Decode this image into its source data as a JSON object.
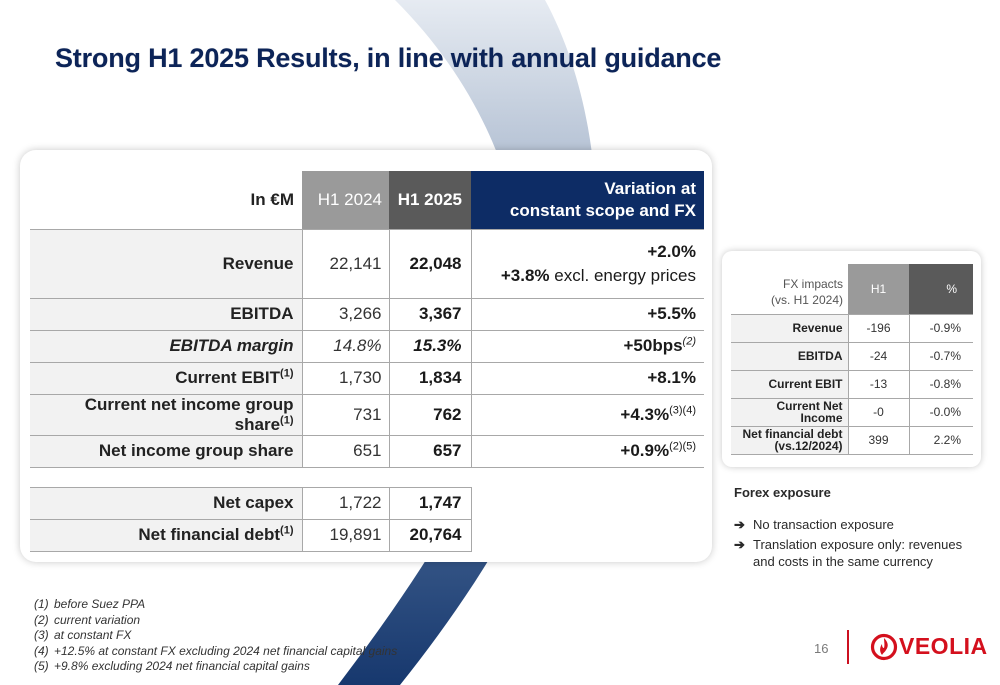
{
  "title": "Strong H1 2025 Results, in line with annual guidance",
  "main_table": {
    "header": {
      "label": "In €M",
      "h1_2024": "H1 2024",
      "h1_2025": "H1 2025",
      "variation_line1": "Variation at",
      "variation_line2": "constant scope and FX"
    },
    "rows": [
      {
        "label": "Revenue",
        "h1_2024": "22,141",
        "h1_2025": "22,048",
        "var": "+2.0%",
        "var2_value": "+3.8%",
        "var2_text": " excl. energy prices"
      },
      {
        "label": "EBITDA",
        "h1_2024": "3,266",
        "h1_2025": "3,367",
        "var": "+5.5%"
      },
      {
        "label": "EBITDA margin",
        "h1_2024": "14.8%",
        "h1_2025": "15.3%",
        "var": "+50bps",
        "var_note": "(2)"
      },
      {
        "label": "Current EBIT",
        "label_note": "(1)",
        "h1_2024": "1,730",
        "h1_2025": "1,834",
        "var": "+8.1%"
      },
      {
        "label": "Current net income group share",
        "label_note": "(1)",
        "h1_2024": "731",
        "h1_2025": "762",
        "var": "+4.3%",
        "var_note": "(3)(4)"
      },
      {
        "label": "Net income group share",
        "h1_2024": "651",
        "h1_2025": "657",
        "var": "+0.9%",
        "var_note": "(2)(5)"
      },
      {
        "label": "Net capex",
        "h1_2024": "1,722",
        "h1_2025": "1,747"
      },
      {
        "label": "Net financial debt",
        "label_note": "(1)",
        "h1_2024": "19,891",
        "h1_2025": "20,764"
      }
    ]
  },
  "fx_table": {
    "header": {
      "line1": "FX impacts",
      "line2": "(vs. H1 2024)",
      "h1": "H1",
      "pct": "%"
    },
    "rows": [
      {
        "label": "Revenue",
        "h1": "-196",
        "pct": "-0.9%"
      },
      {
        "label": "EBITDA",
        "h1": "-24",
        "pct": "-0.7%"
      },
      {
        "label": "Current EBIT",
        "h1": "-13",
        "pct": "-0.8%"
      },
      {
        "label_line1": "Current Net",
        "label_line2": "Income",
        "h1": "-0",
        "pct": "-0.0%"
      },
      {
        "label_line1": "Net financial debt",
        "label_line2": "(vs.12/2024)",
        "h1": "399",
        "pct": "2.2%"
      }
    ]
  },
  "forex": {
    "heading": "Forex exposure",
    "bullets": [
      "No transaction exposure",
      "Translation exposure only: revenues and costs in the same currency"
    ],
    "arrow_glyph": "➔"
  },
  "notes": [
    {
      "num": "(1)",
      "text": "before Suez PPA"
    },
    {
      "num": "(2)",
      "text": "current variation"
    },
    {
      "num": "(3)",
      "text": "at constant FX"
    },
    {
      "num": "(4)",
      "text": "+12.5% at constant FX excluding 2024 net financial capital gains"
    },
    {
      "num": "(5)",
      "text": "+9.8% excluding 2024 net financial capital gains"
    }
  ],
  "page_number": "16",
  "logo": {
    "text": "VEOLIA",
    "icon": "veolia-flame-icon",
    "color": "#d4101d"
  },
  "colors": {
    "title": "#0c2458",
    "variation_header": "#0d2c65",
    "h1_2024_header": "#9a9a9a",
    "h1_2025_header": "#5a5a5a",
    "separator": "#cc1020"
  }
}
